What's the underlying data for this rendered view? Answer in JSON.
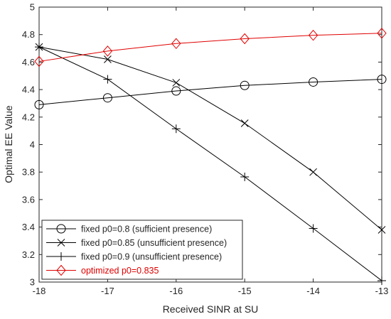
{
  "chart_data": {
    "type": "line",
    "title": "",
    "xlabel": "Received SINR at SU",
    "ylabel": "Optimal EE Value",
    "xlim": [
      -18,
      -13
    ],
    "ylim": [
      3,
      5
    ],
    "xticks": [
      -18,
      -17,
      -16,
      -15,
      -14,
      -13
    ],
    "yticks": [
      3,
      3.2,
      3.4,
      3.6,
      3.8,
      4,
      4.2,
      4.4,
      4.6,
      4.8,
      5
    ],
    "x": [
      -18,
      -17,
      -16,
      -15,
      -14,
      -13
    ],
    "grid": false,
    "legend_position": "bottom-left",
    "series": [
      {
        "name": "fixed p0=0.8 (sufficient presence)",
        "values": [
          4.29,
          4.34,
          4.39,
          4.43,
          4.455,
          4.475
        ],
        "marker": "circle",
        "color": "#000000"
      },
      {
        "name": "fixed p0=0.85 (unsufficient presence)",
        "values": [
          4.71,
          4.62,
          4.45,
          4.155,
          3.8,
          3.38
        ],
        "marker": "x",
        "color": "#000000"
      },
      {
        "name": "fixed p0=0.9 (unsufficient presence)",
        "values": [
          4.71,
          4.475,
          4.115,
          3.765,
          3.39,
          3.01
        ],
        "marker": "plus",
        "color": "#000000"
      },
      {
        "name": "optimized p0=0.835",
        "values": [
          4.605,
          4.68,
          4.735,
          4.77,
          4.795,
          4.81
        ],
        "marker": "diamond",
        "color": "#e00000"
      }
    ]
  }
}
